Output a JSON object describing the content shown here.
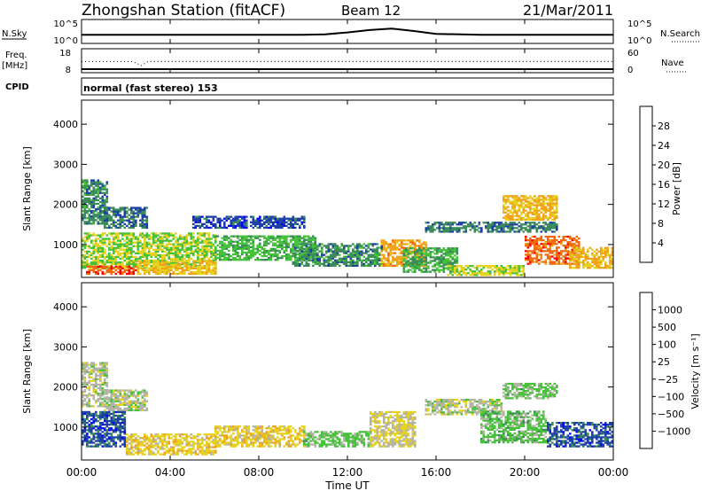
{
  "header": {
    "station": "Zhongshan Station (fitACF)",
    "beam": "Beam 12",
    "date": "21/Mar/2011",
    "cpid_label": "CPID",
    "cpid_value": "normal (fast stereo) 153"
  },
  "colors": {
    "power": [
      "#0000ff",
      "#1f3fa8",
      "#3a8a5a",
      "#46c23a",
      "#e6d21f",
      "#f0a21a",
      "#f06a10",
      "#ff0000"
    ],
    "velocity": [
      "#ff0000",
      "#f06a10",
      "#f0a21a",
      "#e6d21f",
      "#b4b4a6",
      "#46c23a",
      "#3a8a5a",
      "#1f3fa8",
      "#0000ff"
    ]
  },
  "chart_data": [
    {
      "type": "line",
      "name": "noise",
      "left_label": "N.Sky",
      "right_label": "N.Search",
      "left_ticks": [
        "10^5",
        "10^0"
      ],
      "right_ticks": [
        "10^5",
        "10^0"
      ],
      "x_range_hours": [
        0,
        24
      ],
      "series": [
        {
          "name": "N.Sky",
          "x": [
            0,
            2,
            4,
            6,
            8,
            10,
            11,
            12,
            13,
            14,
            15,
            16,
            18,
            20,
            22,
            24
          ],
          "y_log10": [
            1.8,
            1.8,
            1.8,
            1.8,
            1.8,
            1.8,
            1.9,
            2.3,
            2.8,
            3.1,
            2.6,
            2.0,
            1.8,
            1.8,
            1.8,
            1.8
          ]
        }
      ]
    },
    {
      "type": "line",
      "name": "frequency",
      "left_label": "Freq.",
      "left_unit": "[MHz]",
      "right_label": "Nave",
      "left_ticks": [
        "18",
        "8"
      ],
      "right_ticks": [
        "60",
        "0"
      ],
      "x_range_hours": [
        0,
        24
      ],
      "series": [
        {
          "name": "Freq",
          "x": [
            0,
            24
          ],
          "y": [
            9.5,
            9.5
          ]
        },
        {
          "name": "Nave",
          "x": [
            0,
            2.3,
            2.7,
            3.0,
            24
          ],
          "y": [
            28,
            28,
            18,
            28,
            28
          ]
        }
      ]
    },
    {
      "type": "heatmap",
      "name": "power",
      "ylabel": "Slant Range [km]",
      "y_ticks": [
        "1000",
        "2000",
        "3000",
        "4000"
      ],
      "ylim": [
        180,
        4600
      ],
      "colorbar_label": "Power [dB]",
      "colorbar_ticks": [
        "4",
        "8",
        "12",
        "16",
        "20",
        "24",
        "28"
      ],
      "zlim": [
        0,
        32
      ],
      "regions": [
        {
          "t": [
            0.0,
            1.2
          ],
          "r": [
            1500,
            2600
          ],
          "z": 10
        },
        {
          "t": [
            1.0,
            3.0
          ],
          "r": [
            1400,
            1900
          ],
          "z": 8
        },
        {
          "t": [
            0.0,
            6.0
          ],
          "r": [
            400,
            1300
          ],
          "z": 16
        },
        {
          "t": [
            0.2,
            2.5
          ],
          "r": [
            250,
            450
          ],
          "z": 27
        },
        {
          "t": [
            2.5,
            6.0
          ],
          "r": [
            250,
            600
          ],
          "z": 20
        },
        {
          "t": [
            6.0,
            10.5
          ],
          "r": [
            600,
            1200
          ],
          "z": 13
        },
        {
          "t": [
            5.0,
            10.0
          ],
          "r": [
            1400,
            1700
          ],
          "z": 6
        },
        {
          "t": [
            9.5,
            13.5
          ],
          "r": [
            450,
            1000
          ],
          "z": 10
        },
        {
          "t": [
            13.5,
            15.5
          ],
          "r": [
            450,
            1100
          ],
          "z": 22
        },
        {
          "t": [
            14.5,
            17.0
          ],
          "r": [
            300,
            900
          ],
          "z": 12
        },
        {
          "t": [
            15.5,
            21.5
          ],
          "r": [
            1300,
            1550
          ],
          "z": 9
        },
        {
          "t": [
            16.5,
            20.0
          ],
          "r": [
            220,
            450
          ],
          "z": 17
        },
        {
          "t": [
            19.0,
            21.5
          ],
          "r": [
            1600,
            2200
          ],
          "z": 21
        },
        {
          "t": [
            20.0,
            22.5
          ],
          "r": [
            500,
            1200
          ],
          "z": 26
        },
        {
          "t": [
            22.0,
            24.0
          ],
          "r": [
            400,
            900
          ],
          "z": 21
        }
      ]
    },
    {
      "type": "heatmap",
      "name": "velocity",
      "ylabel": "Slant Range [km]",
      "y_ticks": [
        "1000",
        "2000",
        "3000",
        "4000"
      ],
      "ylim": [
        180,
        4600
      ],
      "colorbar_label": "Velocity [m s⁻¹]",
      "colorbar_ticks": [
        "1000",
        "500",
        "100",
        "25",
        "−25",
        "−100",
        "−500",
        "−1000"
      ],
      "zlim": [
        -1250,
        1250
      ],
      "regions": [
        {
          "t": [
            0.0,
            1.2
          ],
          "r": [
            1500,
            2600
          ],
          "z": 0
        },
        {
          "t": [
            1.0,
            3.0
          ],
          "r": [
            1400,
            1900
          ],
          "z": 0
        },
        {
          "t": [
            0.0,
            2.0
          ],
          "r": [
            500,
            1400
          ],
          "z": 800
        },
        {
          "t": [
            2.0,
            6.0
          ],
          "r": [
            300,
            800
          ],
          "z": -300
        },
        {
          "t": [
            6.0,
            10.0
          ],
          "r": [
            500,
            1000
          ],
          "z": -300
        },
        {
          "t": [
            10.0,
            13.0
          ],
          "r": [
            500,
            900
          ],
          "z": 200
        },
        {
          "t": [
            13.0,
            15.0
          ],
          "r": [
            500,
            1400
          ],
          "z": -150
        },
        {
          "t": [
            15.5,
            19.0
          ],
          "r": [
            1300,
            1700
          ],
          "z": 0
        },
        {
          "t": [
            18.0,
            21.0
          ],
          "r": [
            600,
            1400
          ],
          "z": 250
        },
        {
          "t": [
            19.0,
            21.5
          ],
          "r": [
            1700,
            2100
          ],
          "z": 200
        },
        {
          "t": [
            21.0,
            24.0
          ],
          "r": [
            500,
            1100
          ],
          "z": 800
        }
      ]
    }
  ],
  "xaxis": {
    "ticks": [
      "00:00",
      "04:00",
      "08:00",
      "12:00",
      "16:00",
      "20:00",
      "00:00"
    ],
    "label": "Time UT"
  }
}
